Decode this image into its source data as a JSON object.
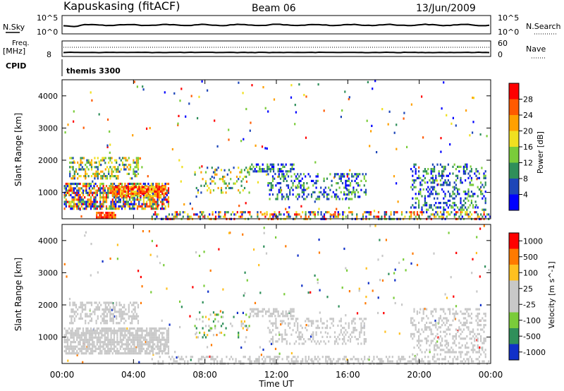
{
  "header": {
    "station": "Kapuskasing (fitACF)",
    "beam": "Beam 06",
    "date": "13/Jun/2009"
  },
  "housekeeping": {
    "nsky_label": "N.Sky",
    "nsky_ticks": [
      "10^5",
      "10^0"
    ],
    "nsearch_label": "N.Search",
    "nsearch_ticks": [
      "10^5",
      "10^0"
    ],
    "freq_label": "Freq.",
    "freq_unit": "[MHz]",
    "freq_tick": "8",
    "nave_label": "Nave",
    "nave_ticks": [
      "60",
      "0"
    ],
    "cpid_label": "CPID",
    "cpid_value": "themis 3300"
  },
  "chart_data": [
    {
      "type": "heatmap",
      "name": "power",
      "ylabel": "Slant Range [km]",
      "xlabel": "Time UT",
      "x_ticks": [
        "00:00",
        "04:00",
        "08:00",
        "12:00",
        "16:00",
        "20:00",
        "00:00"
      ],
      "x_range_hours": [
        0,
        24
      ],
      "y_ticks": [
        1000,
        2000,
        3000,
        4000
      ],
      "y_range_km": [
        180,
        4500
      ],
      "colorbar_label": "Power [dB]",
      "colorbar_ticks": [
        "28",
        "24",
        "20",
        "16",
        "12",
        "8",
        "4"
      ],
      "colors": [
        "#0000ff",
        "#1d46b8",
        "#2f8f5a",
        "#7acc3a",
        "#f0e020",
        "#ffa000",
        "#ff5a00",
        "#ff0000"
      ],
      "regions": [
        {
          "t0": 0.1,
          "t1": 6.0,
          "r0": 500,
          "r1": 1300,
          "density": 0.7,
          "level": [
            0,
            7
          ]
        },
        {
          "t0": 0.4,
          "t1": 4.3,
          "r0": 1400,
          "r1": 2100,
          "density": 0.45,
          "level": [
            1,
            5
          ]
        },
        {
          "t0": 1.9,
          "t1": 3.0,
          "r0": 200,
          "r1": 400,
          "density": 0.9,
          "level": [
            5,
            7
          ]
        },
        {
          "t0": 2.8,
          "t1": 5.8,
          "r0": 900,
          "r1": 1200,
          "density": 0.8,
          "level": [
            4,
            7
          ]
        },
        {
          "t0": 5.0,
          "t1": 24.0,
          "r0": 200,
          "r1": 420,
          "density": 0.35,
          "level": [
            0,
            7
          ]
        },
        {
          "t0": 7.4,
          "t1": 10.5,
          "r0": 1000,
          "r1": 1800,
          "density": 0.2,
          "level": [
            1,
            5
          ]
        },
        {
          "t0": 10.5,
          "t1": 13.0,
          "r0": 1650,
          "r1": 1900,
          "density": 0.55,
          "level": [
            0,
            3
          ]
        },
        {
          "t0": 11.5,
          "t1": 17.0,
          "r0": 800,
          "r1": 1600,
          "density": 0.3,
          "level": [
            0,
            3
          ]
        },
        {
          "t0": 19.5,
          "t1": 23.7,
          "r0": 450,
          "r1": 1900,
          "density": 0.3,
          "level": [
            0,
            3
          ]
        }
      ],
      "scatter_density": 0.012
    },
    {
      "type": "heatmap",
      "name": "velocity",
      "ylabel": "Slant Range [km]",
      "xlabel": "Time UT",
      "x_ticks": [
        "00:00",
        "04:00",
        "08:00",
        "12:00",
        "16:00",
        "20:00",
        "00:00"
      ],
      "x_range_hours": [
        0,
        24
      ],
      "y_ticks": [
        1000,
        2000,
        3000,
        4000
      ],
      "y_range_km": [
        180,
        4500
      ],
      "colorbar_label": "Velocity [m s^-1]",
      "colorbar_ticks": [
        "1000",
        "500",
        "100",
        "25",
        "-25",
        "-100",
        "-500",
        "-1000"
      ],
      "colors": [
        "#1030c8",
        "#2f8f5a",
        "#7acc3a",
        "#c8c8c8",
        "#c8c8c8",
        "#ffc020",
        "#ff7a00",
        "#ff0000"
      ],
      "regions": [
        {
          "t0": 0.1,
          "t1": 6.0,
          "r0": 500,
          "r1": 1300,
          "density": 0.75,
          "level": [
            3,
            4
          ]
        },
        {
          "t0": 0.4,
          "t1": 4.3,
          "r0": 1400,
          "r1": 2100,
          "density": 0.45,
          "level": [
            3,
            4
          ]
        },
        {
          "t0": 5.0,
          "t1": 24.0,
          "r0": 200,
          "r1": 420,
          "density": 0.35,
          "level": [
            3,
            4
          ]
        },
        {
          "t0": 7.4,
          "t1": 10.5,
          "r0": 1000,
          "r1": 1800,
          "density": 0.15,
          "level": [
            1,
            5
          ]
        },
        {
          "t0": 10.5,
          "t1": 13.0,
          "r0": 1650,
          "r1": 1900,
          "density": 0.5,
          "level": [
            3,
            4
          ]
        },
        {
          "t0": 11.5,
          "t1": 17.0,
          "r0": 800,
          "r1": 1600,
          "density": 0.3,
          "level": [
            3,
            4
          ]
        },
        {
          "t0": 19.5,
          "t1": 23.7,
          "r0": 450,
          "r1": 1900,
          "density": 0.3,
          "level": [
            3,
            4
          ]
        }
      ],
      "scatter_density": 0.012
    }
  ]
}
